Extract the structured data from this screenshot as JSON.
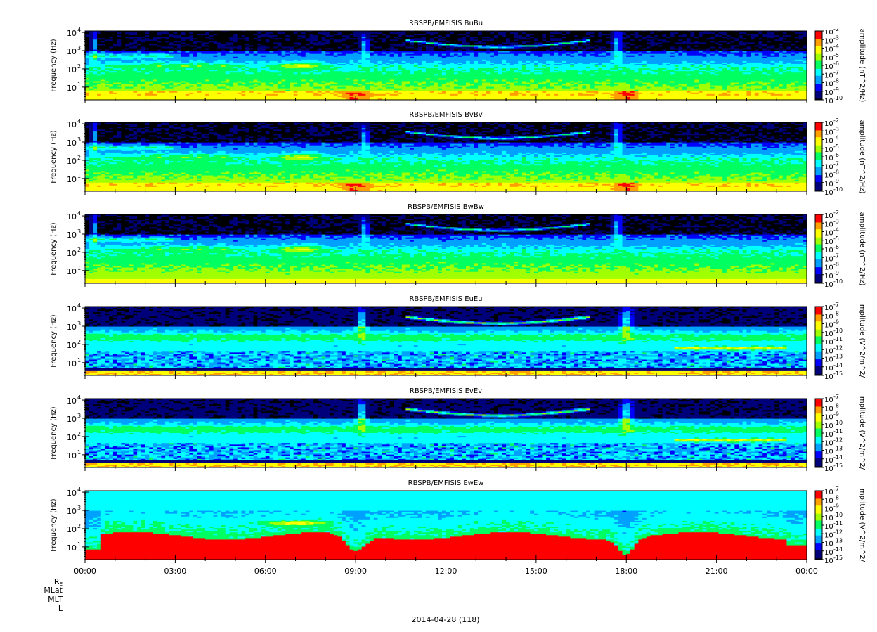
{
  "chart_data": {
    "type": "heatmap",
    "date_label": "2014-04-28 (118)",
    "ephemeris_labels": {
      "re_main": "R",
      "re_sub": "E",
      "mlat": "MLat",
      "mlt": "MLT",
      "l": "L"
    },
    "x_axis": {
      "ticks": [
        "00:00",
        "03:00",
        "06:00",
        "09:00",
        "12:00",
        "15:00",
        "18:00",
        "21:00",
        "00:00"
      ],
      "range_hours": [
        0,
        24
      ]
    },
    "panels": [
      {
        "title": "RBSPB/EMFISIS  BuBu",
        "ylabel": "Frequency (Hz)",
        "yticks": [
          {
            "base": "10",
            "exp": "1"
          },
          {
            "base": "10",
            "exp": "2"
          },
          {
            "base": "10",
            "exp": "3"
          },
          {
            "base": "10",
            "exp": "4"
          }
        ],
        "ylim_hz": [
          2,
          12000
        ],
        "yscale": "log",
        "colorbar_label": "amplitude (nT^2/Hz)",
        "colorbar_ticks": [
          "-2",
          "-3",
          "-4",
          "-5",
          "-6",
          "-7",
          "-8",
          "-9",
          "-10"
        ],
        "colorbar_range_exp": [
          -10,
          -2
        ],
        "kind": "B"
      },
      {
        "title": "RBSPB/EMFISIS  BvBv",
        "ylabel": "Frequency (Hz)",
        "yticks": [
          {
            "base": "10",
            "exp": "1"
          },
          {
            "base": "10",
            "exp": "2"
          },
          {
            "base": "10",
            "exp": "3"
          },
          {
            "base": "10",
            "exp": "4"
          }
        ],
        "ylim_hz": [
          2,
          12000
        ],
        "yscale": "log",
        "colorbar_label": "amplitude (nT^2/Hz)",
        "colorbar_ticks": [
          "-2",
          "-3",
          "-4",
          "-5",
          "-6",
          "-7",
          "-8",
          "-9",
          "-10"
        ],
        "colorbar_range_exp": [
          -10,
          -2
        ],
        "kind": "B"
      },
      {
        "title": "RBSPB/EMFISIS  BwBw",
        "ylabel": "Frequency (Hz)",
        "yticks": [
          {
            "base": "10",
            "exp": "1"
          },
          {
            "base": "10",
            "exp": "2"
          },
          {
            "base": "10",
            "exp": "3"
          },
          {
            "base": "10",
            "exp": "4"
          }
        ],
        "ylim_hz": [
          2,
          12000
        ],
        "yscale": "log",
        "colorbar_label": "amplitude (nT^2/Hz)",
        "colorbar_ticks": [
          "-2",
          "-3",
          "-4",
          "-5",
          "-6",
          "-7",
          "-8",
          "-9",
          "-10"
        ],
        "colorbar_range_exp": [
          -10,
          -2
        ],
        "kind": "Bw"
      },
      {
        "title": "RBSPB/EMFISIS  EuEu",
        "ylabel": "Frequency (Hz)",
        "yticks": [
          {
            "base": "10",
            "exp": "1"
          },
          {
            "base": "10",
            "exp": "2"
          },
          {
            "base": "10",
            "exp": "3"
          },
          {
            "base": "10",
            "exp": "4"
          }
        ],
        "ylim_hz": [
          2,
          12000
        ],
        "yscale": "log",
        "colorbar_label": "mplitude (V^2/m^2/",
        "colorbar_ticks": [
          "-7",
          "-8",
          "-9",
          "-10",
          "-11",
          "-12",
          "-13",
          "-14",
          "-15"
        ],
        "colorbar_range_exp": [
          -15,
          -7
        ],
        "kind": "E"
      },
      {
        "title": "RBSPB/EMFISIS  EvEv",
        "ylabel": "Frequency (Hz)",
        "yticks": [
          {
            "base": "10",
            "exp": "1"
          },
          {
            "base": "10",
            "exp": "2"
          },
          {
            "base": "10",
            "exp": "3"
          },
          {
            "base": "10",
            "exp": "4"
          }
        ],
        "ylim_hz": [
          2,
          12000
        ],
        "yscale": "log",
        "colorbar_label": "mplitude (V^2/m^2/",
        "colorbar_ticks": [
          "-7",
          "-8",
          "-9",
          "-10",
          "-11",
          "-12",
          "-13",
          "-14",
          "-15"
        ],
        "colorbar_range_exp": [
          -15,
          -7
        ],
        "kind": "E"
      },
      {
        "title": "RBSPB/EMFISIS  EwEw",
        "ylabel": "Frequency (Hz)",
        "yticks": [
          {
            "base": "10",
            "exp": "1"
          },
          {
            "base": "10",
            "exp": "2"
          },
          {
            "base": "10",
            "exp": "3"
          },
          {
            "base": "10",
            "exp": "4"
          }
        ],
        "ylim_hz": [
          2,
          12000
        ],
        "yscale": "log",
        "colorbar_label": "mplitude (V^2/m^2/",
        "colorbar_ticks": [
          "-7",
          "-8",
          "-9",
          "-10",
          "-11",
          "-12",
          "-13",
          "-14",
          "-15"
        ],
        "colorbar_range_exp": [
          -15,
          -7
        ],
        "kind": "Ew"
      }
    ],
    "colormap": [
      "#000000",
      "#00007a",
      "#0000ff",
      "#00a0ff",
      "#00ffff",
      "#00ff60",
      "#a0ff00",
      "#ffff00",
      "#ffa000",
      "#ff0000"
    ]
  }
}
